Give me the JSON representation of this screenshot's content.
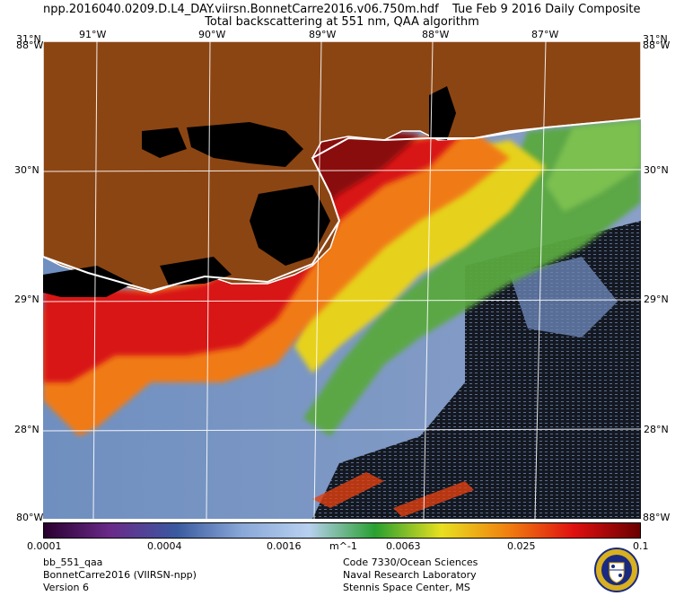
{
  "header": {
    "filename": "npp.2016040.0209.D.L4_DAY.viirsn.BonnetCarre2016.v06.750m.hdf",
    "date": "Tue Feb  9 2016 Daily Composite",
    "product": "Total backscattering at 551 nm, QAA algorithm"
  },
  "map": {
    "top_lon_labels": [
      "91°W",
      "90°W",
      "89°W",
      "88°W",
      "87°W"
    ],
    "lat_labels": [
      "30°N",
      "29°N",
      "28°N"
    ],
    "corner_top_left": "31°N",
    "corner_top_left_overlap": "88°W",
    "corner_top_right": "31°N",
    "corner_top_right_overlap": "88°W",
    "corner_bottom_left": "80°W",
    "corner_bottom_right": "88°W",
    "colors": {
      "land": "#8b4513",
      "inland_water": "#000000",
      "coastline": "#ffffff",
      "grid": "#ffffff",
      "clear_water": "#7d97c0"
    }
  },
  "colorbar": {
    "ticks": [
      "0.0001",
      "0.0004",
      "0.0016",
      "m^-1",
      "0.0063",
      "0.025",
      "0.1"
    ],
    "colors": [
      "#2a0030",
      "#6a2a8a",
      "#3a5aa0",
      "#8aa8d8",
      "#b8d0f0",
      "#28a030",
      "#e8e020",
      "#f08010",
      "#e01010",
      "#6a0000"
    ]
  },
  "footer": {
    "left": [
      "bb_551_qaa",
      "BonnetCarre2016 (VIIRSN-npp)",
      "Version 6"
    ],
    "right": [
      "Code 7330/Ocean Sciences",
      "Naval Research Laboratory",
      "Stennis Space Center, MS"
    ]
  },
  "seal_icon": "nrl-seal-icon"
}
